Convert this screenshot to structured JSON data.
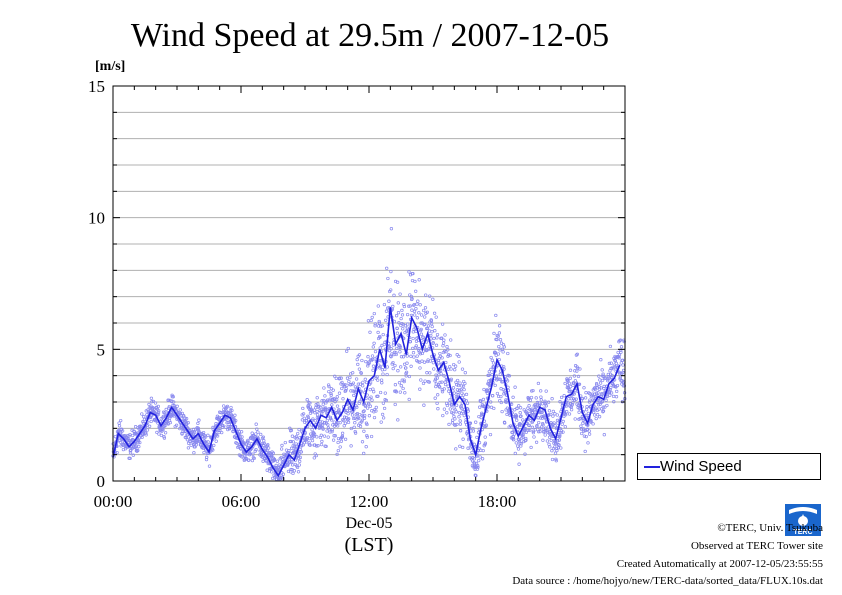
{
  "chart_data": {
    "type": "scatter",
    "title": "Wind Speed at 29.5m / 2007-12-05",
    "ylabel": "[m/s]",
    "xlabel_date": "Dec-05",
    "xlabel_tz": "(LST)",
    "xlim_hours": [
      0,
      24
    ],
    "ylim": [
      0,
      15
    ],
    "x_ticks": [
      {
        "hour": 0,
        "label": "00:00"
      },
      {
        "hour": 6,
        "label": "06:00"
      },
      {
        "hour": 12,
        "label": "12:00"
      },
      {
        "hour": 18,
        "label": "18:00"
      }
    ],
    "y_ticks": [
      {
        "value": 0,
        "label": "0"
      },
      {
        "value": 5,
        "label": "5"
      },
      {
        "value": 10,
        "label": "10"
      },
      {
        "value": 15,
        "label": "15"
      }
    ],
    "grid": true,
    "legend_position": "right-bottom",
    "series": [
      {
        "name": "Wind Speed",
        "color": "#2222dd",
        "scatter_color": "#8888ee",
        "x_hours": [
          0,
          0.25,
          0.5,
          0.75,
          1,
          1.25,
          1.5,
          1.75,
          2,
          2.25,
          2.5,
          2.75,
          3,
          3.25,
          3.5,
          3.75,
          4,
          4.25,
          4.5,
          4.75,
          5,
          5.25,
          5.5,
          5.75,
          6,
          6.25,
          6.5,
          6.75,
          7,
          7.25,
          7.5,
          7.75,
          8,
          8.25,
          8.5,
          8.75,
          9,
          9.25,
          9.5,
          9.75,
          10,
          10.25,
          10.5,
          10.75,
          11,
          11.25,
          11.5,
          11.75,
          12,
          12.25,
          12.5,
          12.75,
          13,
          13.25,
          13.5,
          13.75,
          14,
          14.25,
          14.5,
          14.75,
          15,
          15.25,
          15.5,
          15.75,
          16,
          16.25,
          16.5,
          16.75,
          17,
          17.25,
          17.5,
          17.75,
          18,
          18.25,
          18.5,
          18.75,
          19,
          19.25,
          19.5,
          19.75,
          20,
          20.25,
          20.5,
          20.75,
          21,
          21.25,
          21.5,
          21.75,
          22,
          22.25,
          22.5,
          22.75,
          23,
          23.25,
          23.5,
          23.75
        ],
        "mean_values": [
          0.9,
          1.8,
          1.6,
          1.3,
          1.5,
          1.8,
          2.1,
          2.6,
          2.5,
          2.1,
          2.4,
          2.8,
          2.5,
          2.2,
          1.9,
          1.6,
          1.8,
          1.4,
          1.1,
          1.9,
          2.2,
          2.5,
          2.4,
          1.9,
          1.4,
          1.1,
          1.3,
          1.6,
          1.2,
          0.9,
          0.5,
          0.2,
          0.6,
          1.0,
          0.8,
          1.4,
          2.0,
          2.3,
          2.0,
          2.5,
          2.4,
          2.8,
          2.3,
          2.6,
          3.1,
          2.7,
          3.5,
          3.0,
          3.8,
          4.0,
          5.0,
          4.3,
          6.6,
          5.2,
          5.6,
          4.8,
          6.2,
          5.8,
          5.0,
          5.6,
          4.8,
          4.2,
          4.5,
          3.8,
          2.9,
          3.2,
          2.9,
          1.6,
          1.0,
          2.0,
          2.8,
          3.6,
          4.6,
          4.2,
          3.3,
          2.2,
          1.7,
          2.1,
          2.5,
          2.3,
          2.8,
          2.7,
          2.0,
          1.6,
          2.4,
          3.2,
          3.3,
          3.7,
          2.6,
          2.2,
          2.9,
          3.2,
          3.1,
          3.7,
          3.9,
          4.4,
          4.0,
          2.8
        ],
        "spread_values": [
          0.6,
          0.6,
          0.5,
          0.5,
          0.5,
          0.5,
          0.5,
          0.5,
          0.5,
          0.5,
          0.5,
          0.5,
          0.5,
          0.5,
          0.5,
          0.5,
          0.5,
          0.5,
          0.5,
          0.5,
          0.5,
          0.5,
          0.5,
          0.5,
          0.5,
          0.5,
          0.5,
          0.5,
          0.6,
          0.6,
          0.6,
          0.6,
          0.8,
          0.9,
          1.0,
          1.0,
          1.1,
          1.2,
          1.2,
          1.3,
          1.3,
          1.4,
          1.5,
          1.6,
          1.7,
          1.8,
          1.9,
          2.0,
          2.1,
          2.2,
          2.3,
          2.4,
          2.6,
          2.6,
          2.6,
          2.5,
          2.4,
          2.3,
          2.2,
          2.1,
          2.0,
          1.9,
          1.8,
          1.7,
          1.6,
          1.5,
          1.4,
          1.3,
          1.3,
          1.4,
          1.5,
          1.6,
          1.7,
          1.6,
          1.5,
          1.4,
          1.3,
          1.2,
          1.1,
          1.0,
          1.0,
          1.0,
          1.0,
          1.0,
          1.0,
          1.0,
          1.1,
          1.1,
          1.1,
          1.1,
          1.1,
          1.1,
          1.1,
          1.1,
          1.2,
          1.2,
          1.2,
          1.2
        ]
      }
    ]
  },
  "footer": {
    "copyright": "©TERC, Univ. Tsukuba",
    "site": "Observed at TERC Tower site",
    "created": "Created Automatically at 2007-12-05/23:55:55",
    "source": "Data source : /home/hojyo/new/TERC-data/sorted_data/FLUX.10s.dat"
  },
  "logo": {
    "text": "TERC",
    "color": "#1a66cc"
  }
}
